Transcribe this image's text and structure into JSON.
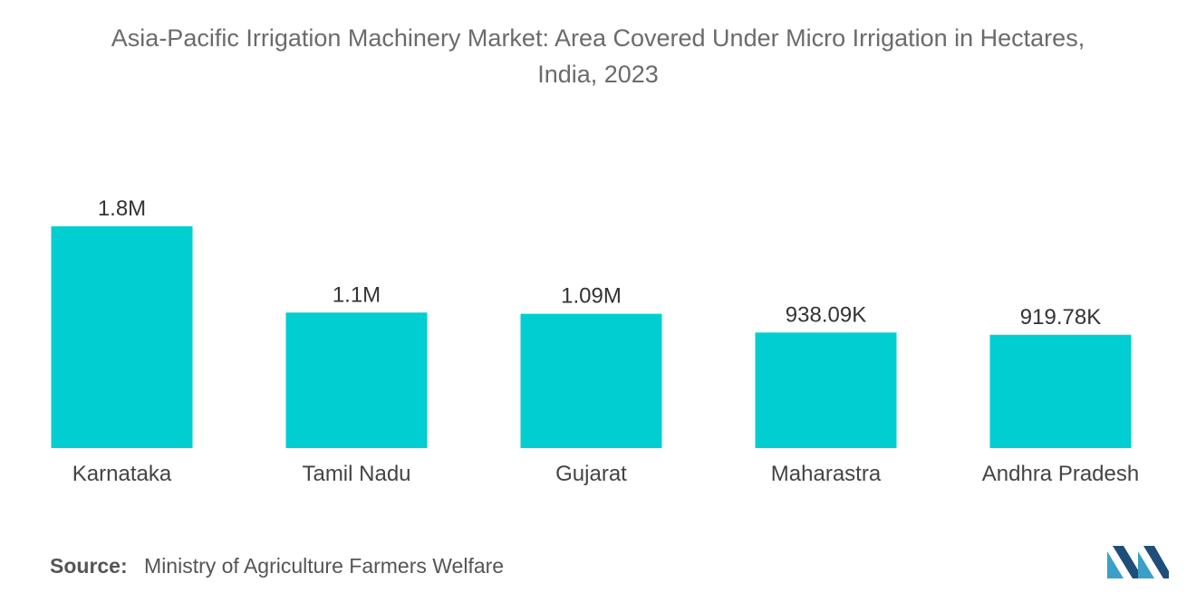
{
  "title_line1": "Asia-Pacific Irrigation Machinery Market: Area Covered Under Micro Irrigation in Hectares,",
  "title_line2": "India, 2023",
  "source_label": "Source:",
  "source_text": "Ministry of Agriculture Farmers Welfare",
  "logo_icon": "mordor-intelligence-logo-icon",
  "colors": {
    "bar": "#00CED1",
    "logo_dark": "#1f4e79",
    "logo_light": "#3aa0c8"
  },
  "chart_data": {
    "type": "bar",
    "title": "Asia-Pacific Irrigation Machinery Market: Area Covered Under Micro Irrigation in Hectares, India, 2023",
    "categories": [
      "Karnataka",
      "Tamil Nadu",
      "Gujarat",
      "Maharastra",
      "Andhra Pradesh"
    ],
    "values": [
      1800000,
      1100000,
      1090000,
      938090,
      919780
    ],
    "value_labels": [
      "1.8M",
      "1.1M",
      "1.09M",
      "938.09K",
      "919.78K"
    ],
    "xlabel": "",
    "ylabel": "",
    "ylim": [
      0,
      1800000
    ],
    "grid": false,
    "legend": "none"
  }
}
